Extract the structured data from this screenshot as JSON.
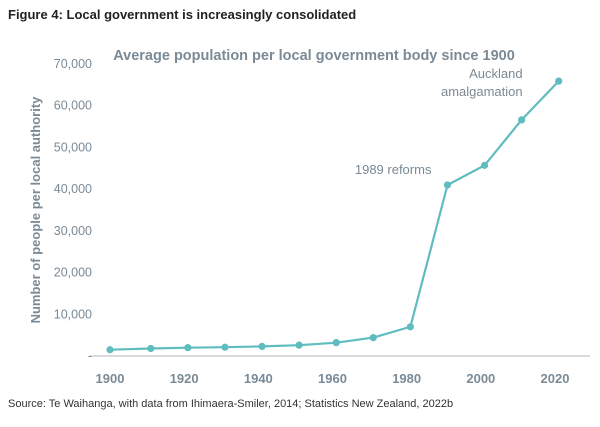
{
  "figure": {
    "heading": "Figure 4: Local government is increasingly consolidated",
    "source": "Source: Te Waihanga, with data from  Ihimaera-Smiler, 2014; Statistics New Zealand, 2022b"
  },
  "colors": {
    "series": "#5fbcbf",
    "text": "#7a8a96",
    "axis": "#b0b6bb",
    "heading": "#222222"
  },
  "chart_data": {
    "type": "line",
    "title": "Average population per local government body since 1900",
    "xlabel": "",
    "ylabel": "Number of people per local authority",
    "x": [
      1900,
      1911,
      1921,
      1931,
      1941,
      1951,
      1961,
      1971,
      1981,
      1991,
      2001,
      2011,
      2021
    ],
    "series": [
      {
        "values": [
          1500,
          1800,
          2000,
          2100,
          2300,
          2600,
          3200,
          4400,
          7000,
          41000,
          45700,
          56600,
          65900
        ]
      }
    ],
    "xticks": [
      1900,
      1920,
      1940,
      1960,
      1980,
      2000,
      2020
    ],
    "yticks": [
      0,
      10000,
      20000,
      30000,
      40000,
      50000,
      60000,
      70000
    ],
    "ytick_labels": [
      "-",
      "10,000",
      "20,000",
      "30,000",
      "40,000",
      "50,000",
      "60,000",
      "70,000"
    ],
    "xlim": [
      1900,
      2020
    ],
    "ylim": [
      0,
      70000
    ],
    "grid": false,
    "annotations": [
      {
        "lines": [
          "1989 reforms"
        ],
        "x": 1991,
        "y": 41000
      },
      {
        "lines": [
          "Auckland",
          "amalgamation"
        ],
        "x": 2011,
        "y": 56600
      }
    ]
  }
}
